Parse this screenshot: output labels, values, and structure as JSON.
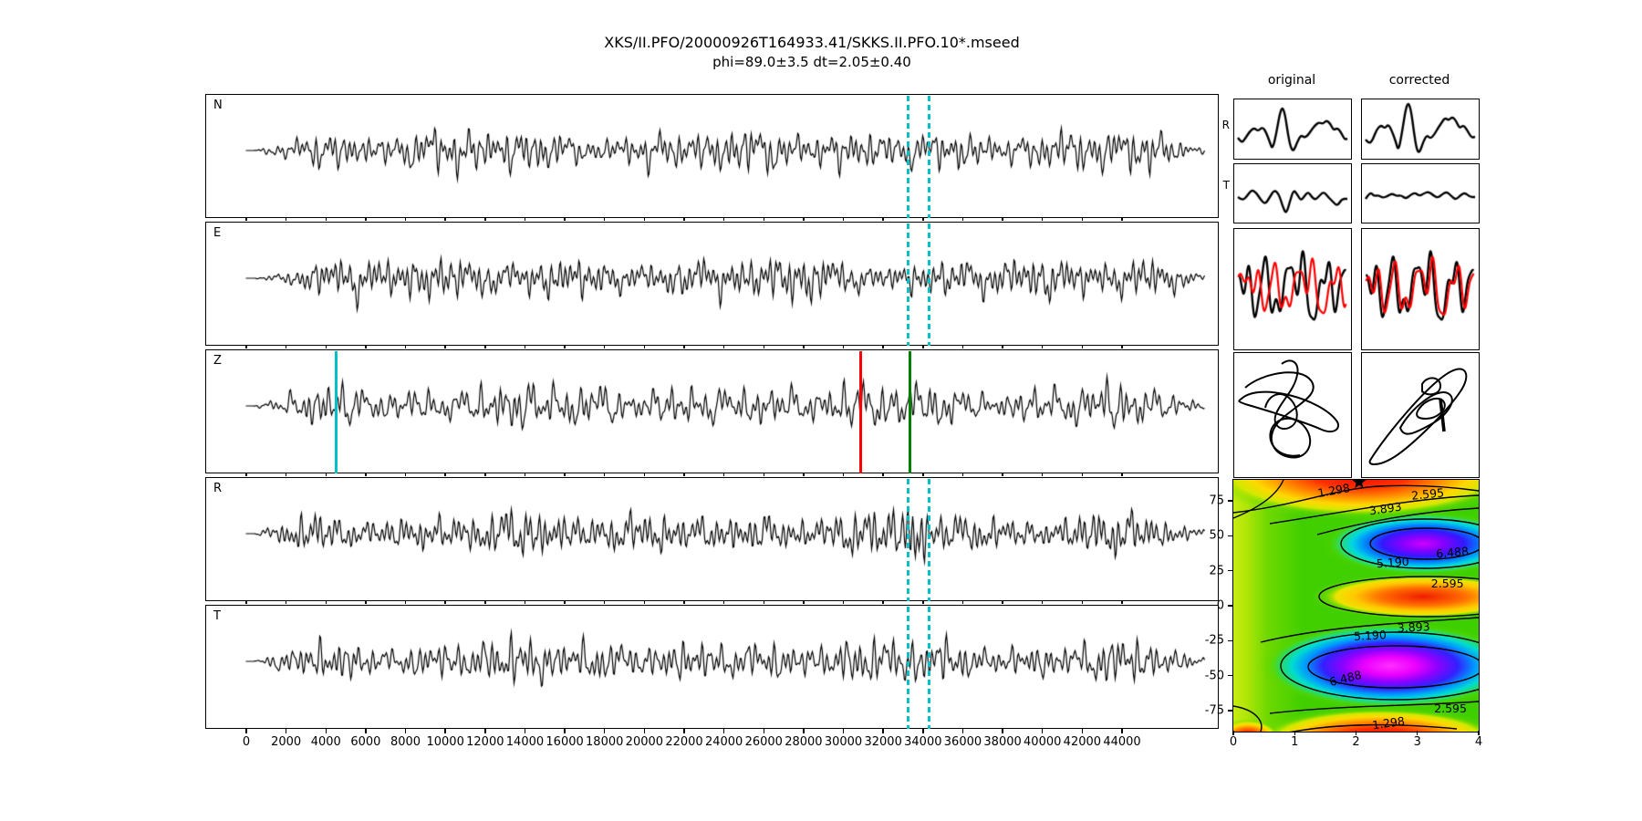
{
  "figure": {
    "title": "XKS/II.PFO/20000926T164933.41/SKKS.II.PFO.10*.mseed",
    "subtitle": "phi=89.0±3.5 dt=2.05±0.40"
  },
  "colors": {
    "trace": "#000000",
    "cyan_marker": "#00c0c8",
    "red_marker": "#ff0000",
    "green_marker": "#008000",
    "overlay_red": "#ff0000"
  },
  "chart_data": [
    {
      "id": "waveform-panels",
      "type": "line",
      "panels": [
        "N",
        "E",
        "Z",
        "R",
        "T"
      ],
      "x_ticks": [
        0,
        2000,
        4000,
        6000,
        8000,
        10000,
        12000,
        14000,
        16000,
        18000,
        20000,
        22000,
        24000,
        26000,
        28000,
        30000,
        32000,
        34000,
        36000,
        38000,
        40000,
        42000,
        44000
      ],
      "xlim": [
        -2000,
        49000
      ],
      "trace_extent": [
        0,
        48200
      ],
      "markers": {
        "z_solid_lines": [
          {
            "x": 4500,
            "color": "#00c0c8",
            "name": "cyan-pick-line"
          },
          {
            "x": 30850,
            "color": "#ff0000",
            "name": "red-window-start-line"
          },
          {
            "x": 33350,
            "color": "#008000",
            "name": "green-window-end-line"
          }
        ],
        "window_dashed_lines": {
          "xs": [
            33250,
            34300
          ],
          "color": "#00c0c8",
          "panels": [
            "N",
            "E",
            "R",
            "T"
          ]
        }
      }
    },
    {
      "id": "comparison-minis",
      "type": "line",
      "column_headers": [
        "original",
        "corrected"
      ],
      "row_labels": [
        "R",
        "T"
      ],
      "rows": [
        "R radial waveform",
        "T transverse waveform",
        "fast/slow component overlay (black, red)",
        "particle motion"
      ]
    },
    {
      "id": "energy-map",
      "type": "heatmap",
      "xlim": [
        0,
        4
      ],
      "ylim": [
        -90,
        90
      ],
      "x_ticks": [
        0,
        1,
        2,
        3,
        4
      ],
      "y_ticks": [
        75,
        50,
        25,
        0,
        -25,
        -50,
        -75
      ],
      "contour_levels": [
        "1.298",
        "2.595",
        "3.893",
        "5.190",
        "6.488"
      ],
      "contour_labels": [
        {
          "text": "1.298",
          "dt": 1.64,
          "phi": 82.8,
          "rot": -10
        },
        {
          "text": "2.595",
          "dt": 3.17,
          "phi": 80.2,
          "rot": -6
        },
        {
          "text": "3.893",
          "dt": 2.48,
          "phi": 69.8,
          "rot": -8
        },
        {
          "text": "6.488",
          "dt": 3.57,
          "phi": 38.5,
          "rot": -5
        },
        {
          "text": "5.190",
          "dt": 2.6,
          "phi": 31.3,
          "rot": -4
        },
        {
          "text": "2.595",
          "dt": 3.49,
          "phi": 16.3,
          "rot": 0
        },
        {
          "text": "3.893",
          "dt": 2.94,
          "phi": -15.0,
          "rot": -3
        },
        {
          "text": "5.190",
          "dt": 2.23,
          "phi": -20.9,
          "rot": -3
        },
        {
          "text": "6.488",
          "dt": 1.83,
          "phi": -51.5,
          "rot": -14
        },
        {
          "text": "2.595",
          "dt": 3.54,
          "phi": -73.0,
          "rot": 0
        },
        {
          "text": "1.298",
          "dt": 2.53,
          "phi": -83.5,
          "rot": -8
        }
      ],
      "best_fit": {
        "phi": 89.0,
        "dt": 2.05,
        "marker": "star"
      },
      "colormap": "gist_rainbow-like",
      "legend_position": "none",
      "grid": false
    }
  ]
}
